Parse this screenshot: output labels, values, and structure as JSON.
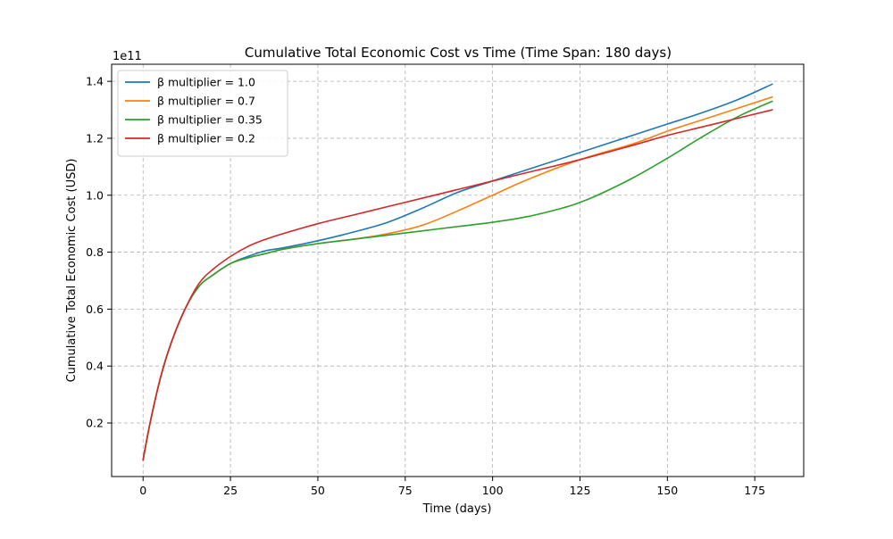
{
  "chart_data": {
    "type": "line",
    "title": "Cumulative Total Economic Cost vs Time (Time Span: 180 days)",
    "xlabel": "Time (days)",
    "ylabel": "Cumulative Total Economic Cost (USD)",
    "y_offset_label": "1e11",
    "xlim": [
      -9,
      189
    ],
    "ylim": [
      0.012,
      1.46
    ],
    "y_scale_factor": "1e11",
    "grid": true,
    "legend_position": "top-left",
    "x_ticks": [
      0,
      25,
      50,
      75,
      100,
      125,
      150,
      175
    ],
    "x_tick_labels": [
      "0",
      "25",
      "50",
      "75",
      "100",
      "125",
      "150",
      "175"
    ],
    "y_ticks": [
      0.2,
      0.4,
      0.6,
      0.8,
      1.0,
      1.2,
      1.4
    ],
    "y_tick_labels": [
      "0.2",
      "0.4",
      "0.6",
      "0.8",
      "1.0",
      "1.2",
      "1.4"
    ],
    "series": [
      {
        "name": "β multiplier = 1.0",
        "color": "#1f77b4",
        "x": [
          0,
          2,
          5,
          8,
          12,
          16,
          20,
          25,
          30,
          35,
          40,
          50,
          60,
          70,
          80,
          90,
          100,
          110,
          125,
          140,
          150,
          160,
          170,
          180
        ],
        "values": [
          0.07,
          0.2,
          0.36,
          0.48,
          0.6,
          0.68,
          0.72,
          0.76,
          0.785,
          0.805,
          0.815,
          0.84,
          0.87,
          0.905,
          0.955,
          1.01,
          1.05,
          1.09,
          1.15,
          1.21,
          1.25,
          1.29,
          1.335,
          1.39
        ]
      },
      {
        "name": "β multiplier = 0.7",
        "color": "#ff7f0e",
        "x": [
          0,
          2,
          5,
          8,
          12,
          16,
          20,
          25,
          30,
          35,
          40,
          50,
          60,
          70,
          80,
          90,
          100,
          110,
          125,
          140,
          150,
          160,
          170,
          180
        ],
        "values": [
          0.07,
          0.2,
          0.36,
          0.48,
          0.6,
          0.68,
          0.72,
          0.76,
          0.78,
          0.795,
          0.81,
          0.83,
          0.845,
          0.865,
          0.895,
          0.945,
          1.0,
          1.055,
          1.125,
          1.18,
          1.225,
          1.265,
          1.305,
          1.345
        ]
      },
      {
        "name": "β multiplier = 0.35",
        "color": "#2ca02c",
        "x": [
          0,
          2,
          5,
          8,
          12,
          16,
          20,
          25,
          30,
          35,
          40,
          50,
          60,
          70,
          80,
          90,
          100,
          110,
          120,
          125,
          130,
          140,
          150,
          160,
          170,
          180
        ],
        "values": [
          0.07,
          0.2,
          0.36,
          0.48,
          0.6,
          0.68,
          0.72,
          0.76,
          0.78,
          0.795,
          0.81,
          0.83,
          0.845,
          0.86,
          0.875,
          0.89,
          0.905,
          0.925,
          0.955,
          0.975,
          1.0,
          1.06,
          1.13,
          1.205,
          1.275,
          1.33
        ]
      },
      {
        "name": "β multiplier = 0.2",
        "color": "#d62728",
        "x": [
          0,
          2,
          5,
          8,
          12,
          16,
          20,
          25,
          30,
          35,
          40,
          50,
          60,
          70,
          80,
          90,
          100,
          110,
          125,
          140,
          150,
          160,
          170,
          180
        ],
        "values": [
          0.07,
          0.2,
          0.36,
          0.48,
          0.6,
          0.69,
          0.74,
          0.785,
          0.82,
          0.845,
          0.865,
          0.9,
          0.93,
          0.96,
          0.99,
          1.02,
          1.05,
          1.08,
          1.125,
          1.175,
          1.21,
          1.24,
          1.27,
          1.3
        ]
      }
    ]
  }
}
